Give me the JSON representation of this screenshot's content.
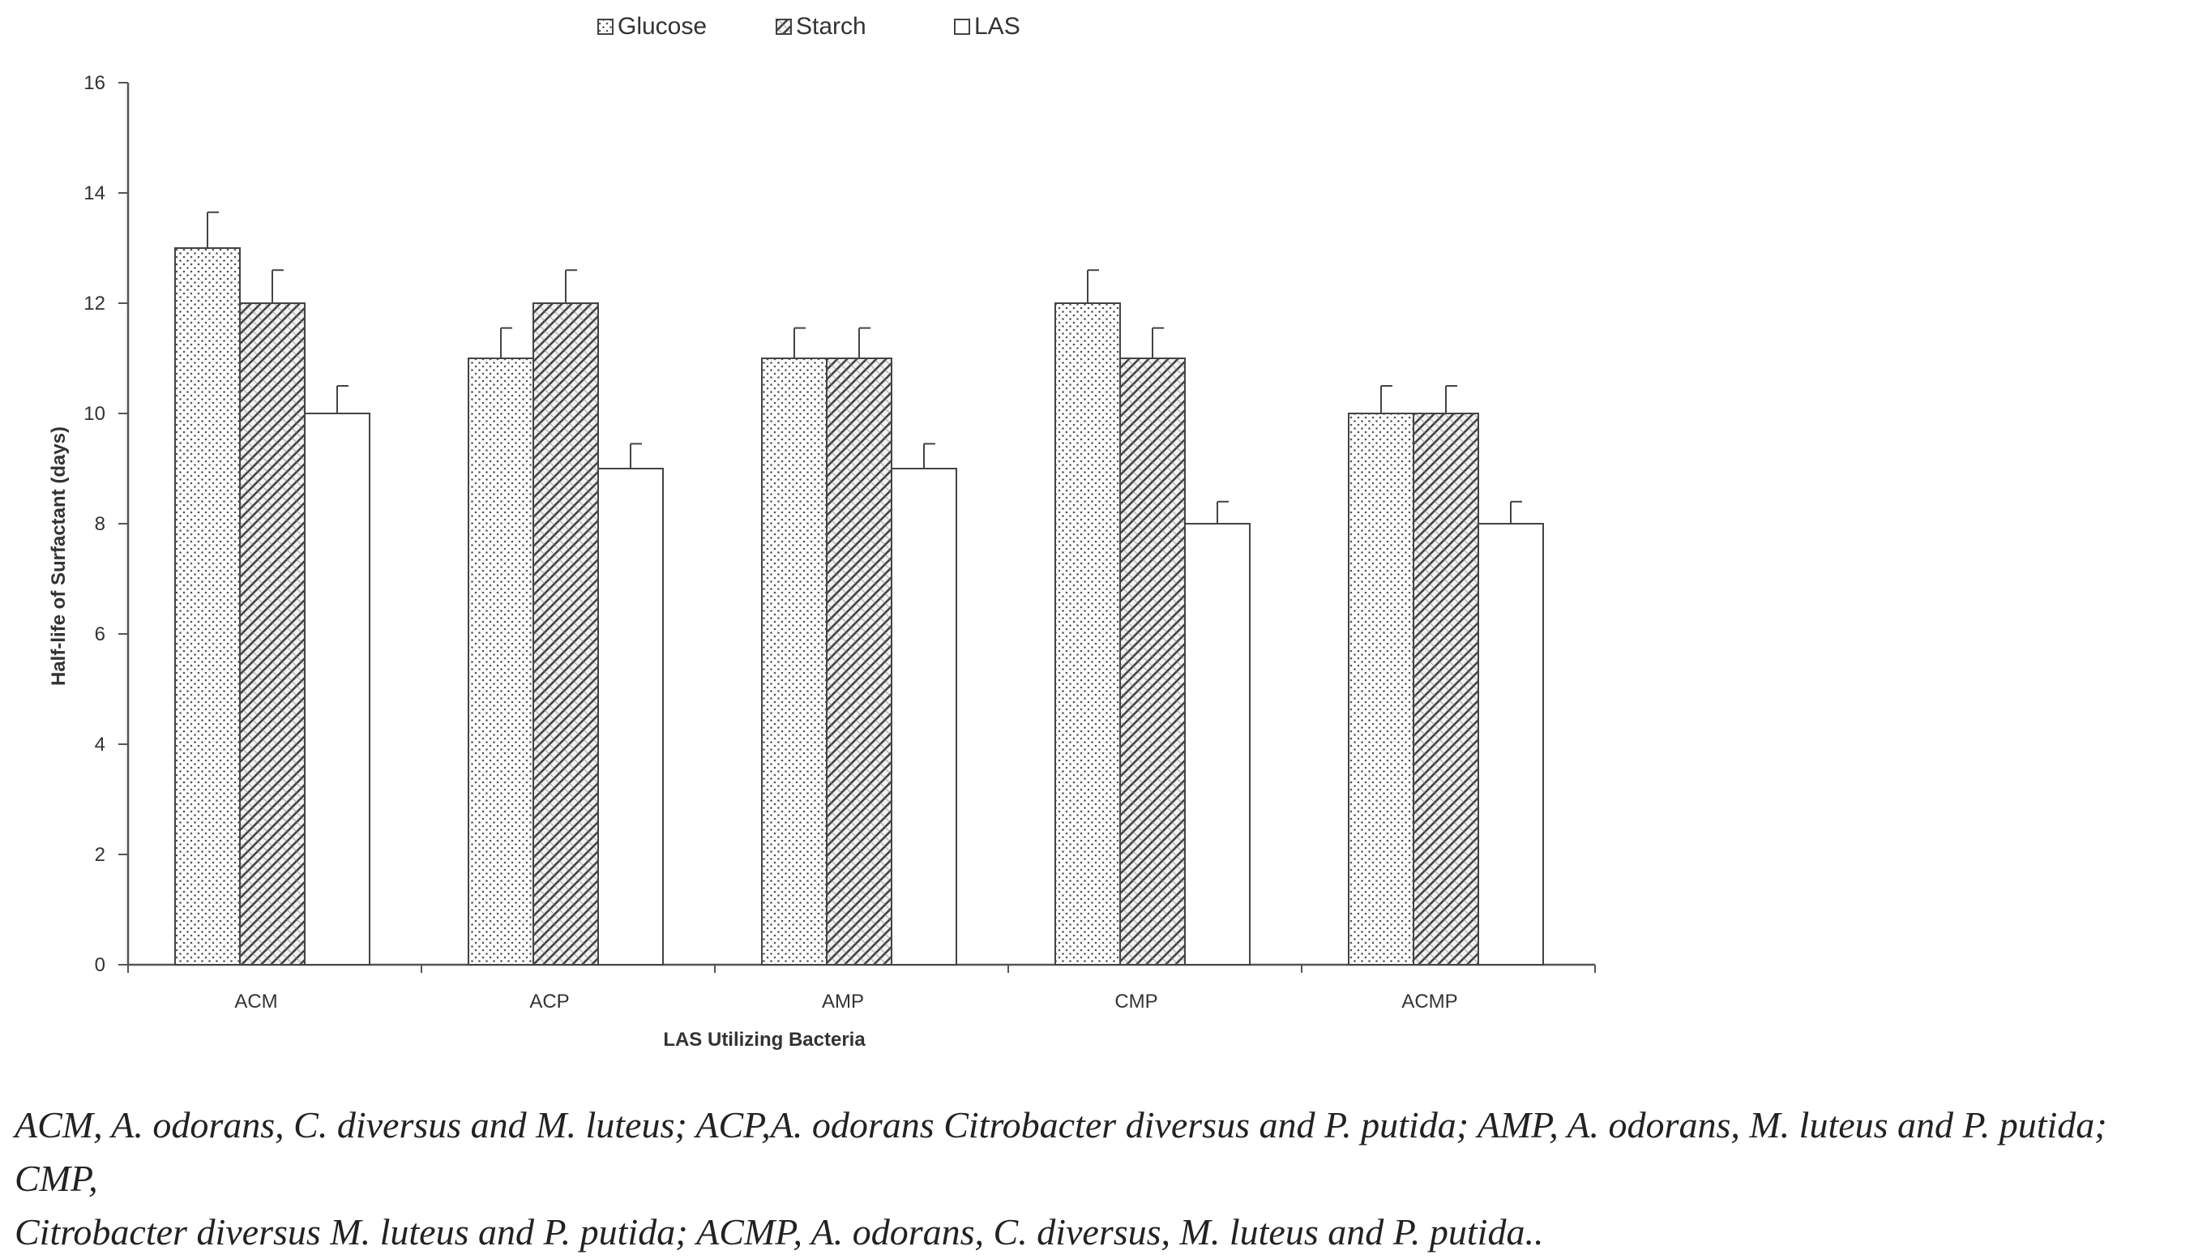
{
  "chart_data": {
    "type": "bar",
    "xlabel": "LAS Utilizing Bacteria",
    "ylabel": "Half-life of Surfactant (days)",
    "ylim": [
      0,
      16
    ],
    "yticks": [
      0,
      2,
      4,
      6,
      8,
      10,
      12,
      14,
      16
    ],
    "ytick_labels": [
      "0",
      "2",
      "4",
      "6",
      "8",
      "10",
      "12",
      "14",
      "16"
    ],
    "categories": [
      "ACM",
      "ACP",
      "AMP",
      "CMP",
      "ACMP"
    ],
    "series": [
      {
        "name": "Glucose",
        "pattern": "dots",
        "values": [
          13,
          11,
          11,
          12,
          10
        ],
        "errors": [
          0.65,
          0.55,
          0.55,
          0.6,
          0.5
        ]
      },
      {
        "name": "Starch",
        "pattern": "hatch",
        "values": [
          12,
          12,
          11,
          11,
          10
        ],
        "errors": [
          0.6,
          0.6,
          0.55,
          0.55,
          0.5
        ]
      },
      {
        "name": "LAS",
        "pattern": "none",
        "values": [
          10,
          9,
          9,
          8,
          8
        ],
        "errors": [
          0.5,
          0.45,
          0.45,
          0.4,
          0.4
        ]
      }
    ],
    "legend_position": "top",
    "grid": false,
    "colors": {
      "axis": "#555555",
      "bar_stroke": "#444444",
      "bar_fill": "#ffffff",
      "text": "#333333"
    }
  },
  "caption": {
    "line1": "ACM, A. odorans, C. diversus and M. luteus; ACP,A. odorans Citrobacter diversus and P. putida; AMP, A. odorans, M. luteus and P. putida; CMP,",
    "line2": "Citrobacter diversus M. luteus and P. putida; ACMP,  A. odorans, C. diversus, M. luteus and P. putida.."
  }
}
